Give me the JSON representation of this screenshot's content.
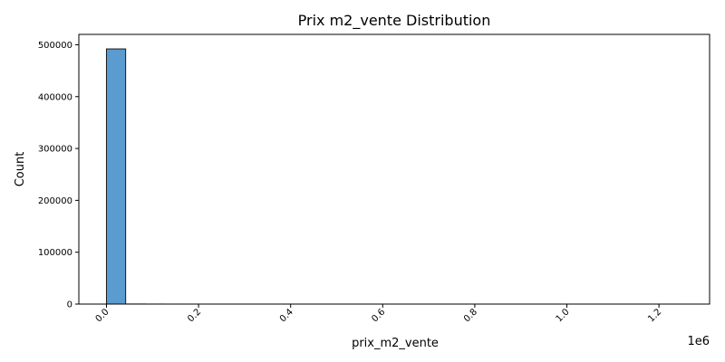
{
  "chart_data": {
    "type": "bar",
    "title": "Prix m2_vente Distribution",
    "xlabel": "prix_m2_vente",
    "ylabel": "Count",
    "x_offset_label": "1e6",
    "xlim": [
      -60000,
      1310000
    ],
    "ylim": [
      0,
      520000
    ],
    "x_ticks": [
      0,
      200000,
      400000,
      600000,
      800000,
      1000000,
      1200000
    ],
    "x_tick_labels": [
      "0.0",
      "0.2",
      "0.4",
      "0.6",
      "0.8",
      "1.0",
      "1.2"
    ],
    "y_ticks": [
      0,
      100000,
      200000,
      300000,
      400000,
      500000
    ],
    "y_tick_labels": [
      "0",
      "100000",
      "200000",
      "300000",
      "400000",
      "500000"
    ],
    "bin_start": 0,
    "bin_width": 41667,
    "values": [
      492000,
      150,
      60,
      30,
      20,
      15,
      12,
      10,
      8,
      6,
      5,
      5,
      4,
      4,
      3,
      3,
      2,
      2,
      2,
      2,
      1,
      1,
      1,
      1,
      1,
      1,
      1,
      1,
      1,
      1
    ],
    "grid": false,
    "colors": {
      "bar_fill": "#5a9bd0",
      "bar_edge": "#1a1a1a",
      "axis": "#000000"
    }
  }
}
